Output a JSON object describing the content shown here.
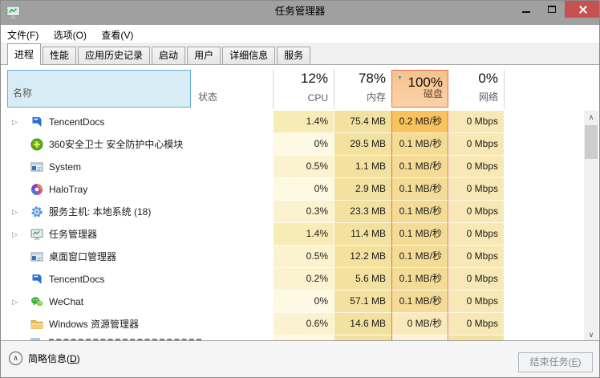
{
  "window": {
    "title": "任务管理器"
  },
  "menubar": {
    "file": "文件(F)",
    "options": "选项(O)",
    "view": "查看(V)"
  },
  "tabs": {
    "processes": "进程",
    "performance": "性能",
    "app_history": "应用历史记录",
    "startup": "启动",
    "users": "用户",
    "details": "详细信息",
    "services": "服务",
    "selected": "进程"
  },
  "columns": {
    "name": {
      "label": "名称"
    },
    "status": {
      "label": "状态"
    },
    "cpu": {
      "label": "CPU",
      "total": "12%"
    },
    "memory": {
      "label": "内存",
      "total": "78%"
    },
    "disk": {
      "label": "磁盘",
      "total": "100%",
      "sorted": "descending"
    },
    "network": {
      "label": "网络",
      "total": "0%"
    }
  },
  "icons": {
    "expand_arrow": "▷",
    "sort_descending": "▼",
    "scroll_up": "∧",
    "scroll_down": "∨",
    "details_chevron": "∧"
  },
  "accent_colors": {
    "name_header_fill": "#d8ecf5",
    "name_header_border": "#66b2d4",
    "disk_header_fill": "#f6c28b",
    "disk_header_border": "#e4714e",
    "close_button": "#c75050",
    "titlebar": "#a0a0a0"
  },
  "heat_colors": {
    "cpu_zero": "#fdf9e2",
    "cpu_low": "#fbf2cf",
    "cpu_mid": "#f8ecb6",
    "mem": "#f3e1a0",
    "disk_low": "#f5dc96",
    "disk_high": "#f9c35c",
    "disk_zero": "#faeabb",
    "net": "#f7e8b5"
  },
  "rows": [
    {
      "name": "TencentDocs",
      "icon": "tencent-docs",
      "expandable": true,
      "cpu": "1.4%",
      "memory": "75.4 MB",
      "disk": "0.2 MB/秒",
      "network": "0 Mbps",
      "heat": {
        "cpu": "cpu_mid",
        "memory": "mem",
        "disk": "disk_high",
        "network": "net"
      }
    },
    {
      "name": "360安全卫士 安全防护中心模块",
      "icon": "360-safe",
      "expandable": false,
      "cpu": "0%",
      "memory": "29.5 MB",
      "disk": "0.1 MB/秒",
      "network": "0 Mbps",
      "heat": {
        "cpu": "cpu_zero",
        "memory": "mem",
        "disk": "disk_low",
        "network": "net"
      }
    },
    {
      "name": "System",
      "icon": "system-window",
      "expandable": false,
      "cpu": "0.5%",
      "memory": "1.1 MB",
      "disk": "0.1 MB/秒",
      "network": "0 Mbps",
      "heat": {
        "cpu": "cpu_low",
        "memory": "mem",
        "disk": "disk_low",
        "network": "net"
      }
    },
    {
      "name": "HaloTray",
      "icon": "halo-tray",
      "expandable": false,
      "cpu": "0%",
      "memory": "2.9 MB",
      "disk": "0.1 MB/秒",
      "network": "0 Mbps",
      "heat": {
        "cpu": "cpu_zero",
        "memory": "mem",
        "disk": "disk_low",
        "network": "net"
      }
    },
    {
      "name": "服务主机: 本地系统 (18)",
      "icon": "service-gear",
      "expandable": true,
      "cpu": "0.3%",
      "memory": "23.3 MB",
      "disk": "0.1 MB/秒",
      "network": "0 Mbps",
      "heat": {
        "cpu": "cpu_low",
        "memory": "mem",
        "disk": "disk_low",
        "network": "net"
      }
    },
    {
      "name": "任务管理器",
      "icon": "task-manager",
      "expandable": true,
      "cpu": "1.4%",
      "memory": "11.4 MB",
      "disk": "0.1 MB/秒",
      "network": "0 Mbps",
      "heat": {
        "cpu": "cpu_mid",
        "memory": "mem",
        "disk": "disk_low",
        "network": "net"
      }
    },
    {
      "name": "桌面窗口管理器",
      "icon": "dwm-window",
      "expandable": false,
      "cpu": "0.5%",
      "memory": "12.2 MB",
      "disk": "0.1 MB/秒",
      "network": "0 Mbps",
      "heat": {
        "cpu": "cpu_low",
        "memory": "mem",
        "disk": "disk_low",
        "network": "net"
      }
    },
    {
      "name": "TencentDocs",
      "icon": "tencent-docs",
      "expandable": false,
      "cpu": "0.2%",
      "memory": "5.6 MB",
      "disk": "0.1 MB/秒",
      "network": "0 Mbps",
      "heat": {
        "cpu": "cpu_low",
        "memory": "mem",
        "disk": "disk_low",
        "network": "net"
      }
    },
    {
      "name": "WeChat",
      "icon": "wechat",
      "expandable": true,
      "cpu": "0%",
      "memory": "57.1 MB",
      "disk": "0.1 MB/秒",
      "network": "0 Mbps",
      "heat": {
        "cpu": "cpu_zero",
        "memory": "mem",
        "disk": "disk_low",
        "network": "net"
      }
    },
    {
      "name": "Windows 资源管理器",
      "icon": "explorer-folder",
      "expandable": false,
      "cpu": "0.6%",
      "memory": "14.6 MB",
      "disk": "0 MB/秒",
      "network": "0 Mbps",
      "heat": {
        "cpu": "cpu_low",
        "memory": "mem",
        "disk": "disk_zero",
        "network": "net"
      }
    }
  ],
  "footer": {
    "details_prefix": "简略信息(",
    "details_accel": "D",
    "details_suffix": ")",
    "end_task_prefix": "结束任务(",
    "end_task_accel": "E",
    "end_task_suffix": ")"
  }
}
